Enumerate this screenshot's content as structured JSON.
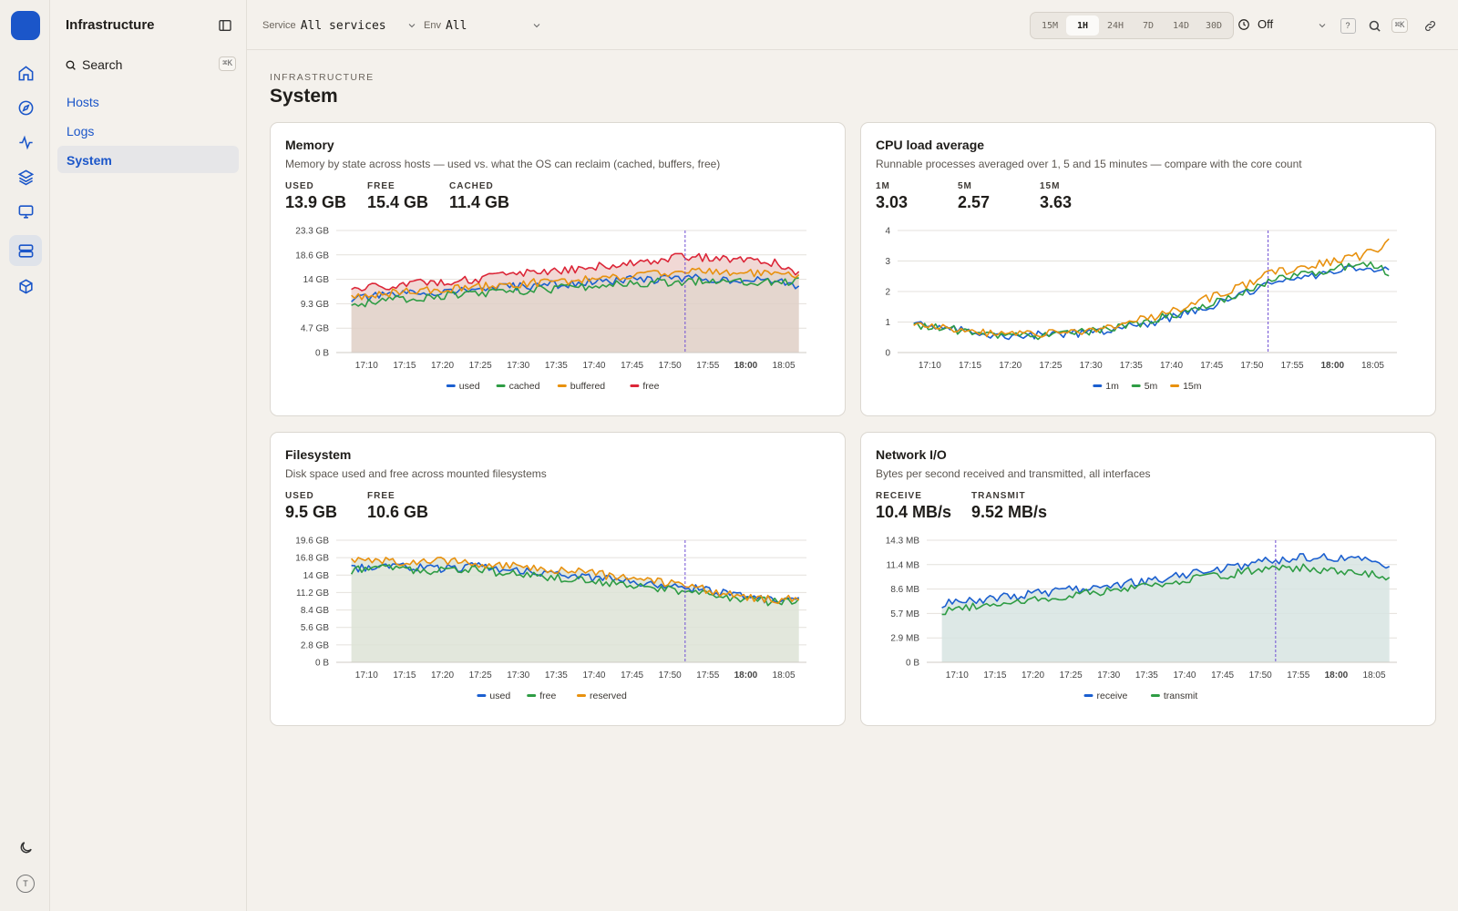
{
  "app": {
    "title": "Infrastructure",
    "search_label": "Search",
    "search_kbd": "⌘K"
  },
  "rail": {
    "items": [
      {
        "icon": "home-icon"
      },
      {
        "icon": "compass-icon"
      },
      {
        "icon": "activity-icon"
      },
      {
        "icon": "layers-icon"
      },
      {
        "icon": "monitor-icon"
      },
      {
        "icon": "server-icon",
        "active": true
      },
      {
        "icon": "package-icon"
      }
    ],
    "theme_icon": "moon-icon",
    "avatar": "T"
  },
  "sidebar": {
    "items": [
      {
        "label": "Hosts"
      },
      {
        "label": "Logs"
      },
      {
        "label": "System",
        "active": true
      }
    ]
  },
  "topbar": {
    "service_label": "Service",
    "service_value": "All services",
    "env_label": "Env",
    "env_value": "All",
    "ranges": [
      "15M",
      "1H",
      "24H",
      "7D",
      "14D",
      "30D"
    ],
    "active_range": "1H",
    "refresh_value": "Off",
    "help_label": "?",
    "search_kbd": "⌘K"
  },
  "page": {
    "kicker": "INFRASTRUCTURE",
    "title": "System"
  },
  "colors": {
    "blue": "#1b5fd0",
    "green": "#2e9c44",
    "orange": "#e8910e",
    "red": "#dc2638",
    "marker": "#6f4fd4"
  },
  "cards": [
    {
      "title": "Memory",
      "subtitle": "Memory by state across hosts — used vs. what the OS can reclaim (cached, buffers, free)",
      "stats": [
        {
          "label": "USED",
          "value": "13.9 GB"
        },
        {
          "label": "FREE",
          "value": "15.4 GB"
        },
        {
          "label": "CACHED",
          "value": "11.4 GB"
        }
      ]
    },
    {
      "title": "CPU load average",
      "subtitle": "Runnable processes averaged over 1, 5 and 15 minutes — compare with the core count",
      "stats": [
        {
          "label": "1M",
          "value": "3.03"
        },
        {
          "label": "5M",
          "value": "2.57"
        },
        {
          "label": "15M",
          "value": "3.63"
        }
      ]
    },
    {
      "title": "Filesystem",
      "subtitle": "Disk space used and free across mounted filesystems",
      "stats": [
        {
          "label": "USED",
          "value": "9.5 GB"
        },
        {
          "label": "FREE",
          "value": "10.6 GB"
        }
      ]
    },
    {
      "title": "Network I/O",
      "subtitle": "Bytes per second received and transmitted, all interfaces",
      "stats": [
        {
          "label": "RECEIVE",
          "value": "10.4 MB/s"
        },
        {
          "label": "TRANSMIT",
          "value": "9.52 MB/s"
        }
      ]
    }
  ],
  "chart_data": [
    {
      "type": "line",
      "title": "Memory",
      "x_ticks": [
        "17:10",
        "17:15",
        "17:20",
        "17:25",
        "17:30",
        "17:35",
        "17:40",
        "17:45",
        "17:50",
        "17:55",
        "18:00",
        "18:05"
      ],
      "y_ticks": [
        "0 B",
        "4.7 GB",
        "9.3 GB",
        "14 GB",
        "18.6 GB",
        "23.3 GB"
      ],
      "ylim": [
        0,
        23.3
      ],
      "unit": "GB",
      "marker_x": "17:52",
      "x_time": [
        "17:08",
        "17:12",
        "17:16",
        "17:20",
        "17:24",
        "17:28",
        "17:32",
        "17:36",
        "17:40",
        "17:44",
        "17:48",
        "17:52",
        "17:56",
        "18:00",
        "18:04",
        "18:07"
      ],
      "series": [
        {
          "name": "used",
          "color": "#1b5fd0",
          "values": [
            10.2,
            10.8,
            11.3,
            11.6,
            12.0,
            12.4,
            12.8,
            13.0,
            13.4,
            13.8,
            14.0,
            14.2,
            14.1,
            13.8,
            13.6,
            12.6
          ]
        },
        {
          "name": "cached",
          "color": "#2e9c44",
          "values": [
            9.2,
            9.8,
            10.4,
            10.8,
            11.2,
            11.6,
            12.0,
            12.3,
            12.7,
            13.1,
            13.4,
            13.6,
            13.8,
            13.7,
            13.4,
            13.6
          ]
        },
        {
          "name": "buffered",
          "color": "#e8910e",
          "values": [
            10.6,
            11.2,
            11.6,
            12.0,
            12.4,
            12.8,
            13.3,
            13.6,
            14.0,
            14.6,
            15.0,
            15.6,
            15.4,
            15.2,
            14.8,
            14.6
          ]
        },
        {
          "name": "free",
          "color": "#dc2638",
          "values": [
            12.0,
            12.6,
            13.2,
            13.6,
            14.0,
            14.6,
            15.2,
            15.8,
            16.4,
            17.0,
            17.6,
            18.4,
            18.0,
            17.6,
            17.2,
            15.2
          ]
        }
      ]
    },
    {
      "type": "line",
      "title": "CPU load average",
      "x_ticks": [
        "17:10",
        "17:15",
        "17:20",
        "17:25",
        "17:30",
        "17:35",
        "17:40",
        "17:45",
        "17:50",
        "17:55",
        "18:00",
        "18:05"
      ],
      "y_ticks": [
        "0",
        "1",
        "2",
        "3",
        "4"
      ],
      "ylim": [
        0,
        4
      ],
      "marker_x": "17:52",
      "x_time": [
        "17:08",
        "17:12",
        "17:16",
        "17:20",
        "17:24",
        "17:28",
        "17:32",
        "17:36",
        "17:40",
        "17:44",
        "17:48",
        "17:52",
        "17:56",
        "18:00",
        "18:04",
        "18:07"
      ],
      "series": [
        {
          "name": "1m",
          "color": "#1b5fd0",
          "values": [
            0.95,
            0.8,
            0.62,
            0.55,
            0.58,
            0.62,
            0.72,
            0.9,
            1.15,
            1.45,
            1.8,
            2.2,
            2.45,
            2.65,
            2.8,
            2.75
          ]
        },
        {
          "name": "5m",
          "color": "#2e9c44",
          "values": [
            0.92,
            0.78,
            0.6,
            0.55,
            0.57,
            0.64,
            0.75,
            0.95,
            1.22,
            1.55,
            1.9,
            2.3,
            2.55,
            2.75,
            2.9,
            2.65
          ]
        },
        {
          "name": "15m",
          "color": "#e8910e",
          "values": [
            1.0,
            0.82,
            0.66,
            0.6,
            0.62,
            0.68,
            0.82,
            1.05,
            1.35,
            1.72,
            2.1,
            2.55,
            2.8,
            3.0,
            3.2,
            3.6
          ]
        }
      ]
    },
    {
      "type": "line",
      "title": "Filesystem",
      "x_ticks": [
        "17:10",
        "17:15",
        "17:20",
        "17:25",
        "17:30",
        "17:35",
        "17:40",
        "17:45",
        "17:50",
        "17:55",
        "18:00",
        "18:05"
      ],
      "y_ticks": [
        "0 B",
        "2.8 GB",
        "5.6 GB",
        "8.4 GB",
        "11.2 GB",
        "14 GB",
        "16.8 GB",
        "19.6 GB"
      ],
      "ylim": [
        0,
        19.6
      ],
      "unit": "GB",
      "marker_x": "17:52",
      "x_time": [
        "17:08",
        "17:12",
        "17:16",
        "17:20",
        "17:24",
        "17:28",
        "17:32",
        "17:36",
        "17:40",
        "17:44",
        "17:48",
        "17:52",
        "17:56",
        "18:00",
        "18:04",
        "18:07"
      ],
      "series": [
        {
          "name": "used",
          "color": "#1b5fd0",
          "values": [
            15.0,
            15.6,
            15.3,
            15.0,
            15.4,
            15.0,
            14.5,
            14.0,
            13.5,
            13.0,
            12.6,
            12.0,
            11.4,
            10.6,
            10.0,
            9.9
          ]
        },
        {
          "name": "free",
          "color": "#2e9c44",
          "values": [
            14.8,
            15.2,
            14.9,
            14.6,
            15.0,
            14.4,
            14.0,
            13.5,
            13.0,
            12.4,
            12.0,
            11.5,
            10.8,
            10.1,
            9.6,
            10.0
          ]
        },
        {
          "name": "reserved",
          "color": "#e8910e",
          "values": [
            16.4,
            16.2,
            16.0,
            16.4,
            15.8,
            15.6,
            15.2,
            14.8,
            14.2,
            13.6,
            13.0,
            12.2,
            11.4,
            10.4,
            10.0,
            10.4
          ]
        }
      ]
    },
    {
      "type": "line",
      "title": "Network I/O",
      "x_ticks": [
        "17:10",
        "17:15",
        "17:20",
        "17:25",
        "17:30",
        "17:35",
        "17:40",
        "17:45",
        "17:50",
        "17:55",
        "18:00",
        "18:05"
      ],
      "y_ticks": [
        "0 B",
        "2.9 MB",
        "5.7 MB",
        "8.6 MB",
        "11.4 MB",
        "14.3 MB"
      ],
      "ylim": [
        0,
        14.3
      ],
      "unit": "MB",
      "marker_x": "17:52",
      "x_time": [
        "17:08",
        "17:12",
        "17:16",
        "17:20",
        "17:24",
        "17:28",
        "17:32",
        "17:36",
        "17:40",
        "17:44",
        "17:48",
        "17:52",
        "17:56",
        "18:00",
        "18:04",
        "18:07"
      ],
      "series": [
        {
          "name": "receive",
          "color": "#1b5fd0",
          "values": [
            6.8,
            7.2,
            7.6,
            8.0,
            8.4,
            8.8,
            9.2,
            9.7,
            10.2,
            10.8,
            11.4,
            12.0,
            12.3,
            12.2,
            11.8,
            10.8
          ]
        },
        {
          "name": "transmit",
          "color": "#2e9c44",
          "values": [
            6.0,
            6.5,
            6.9,
            7.3,
            7.7,
            8.2,
            8.7,
            9.2,
            9.6,
            10.0,
            10.6,
            11.2,
            11.0,
            10.8,
            10.4,
            9.8
          ]
        }
      ]
    }
  ]
}
